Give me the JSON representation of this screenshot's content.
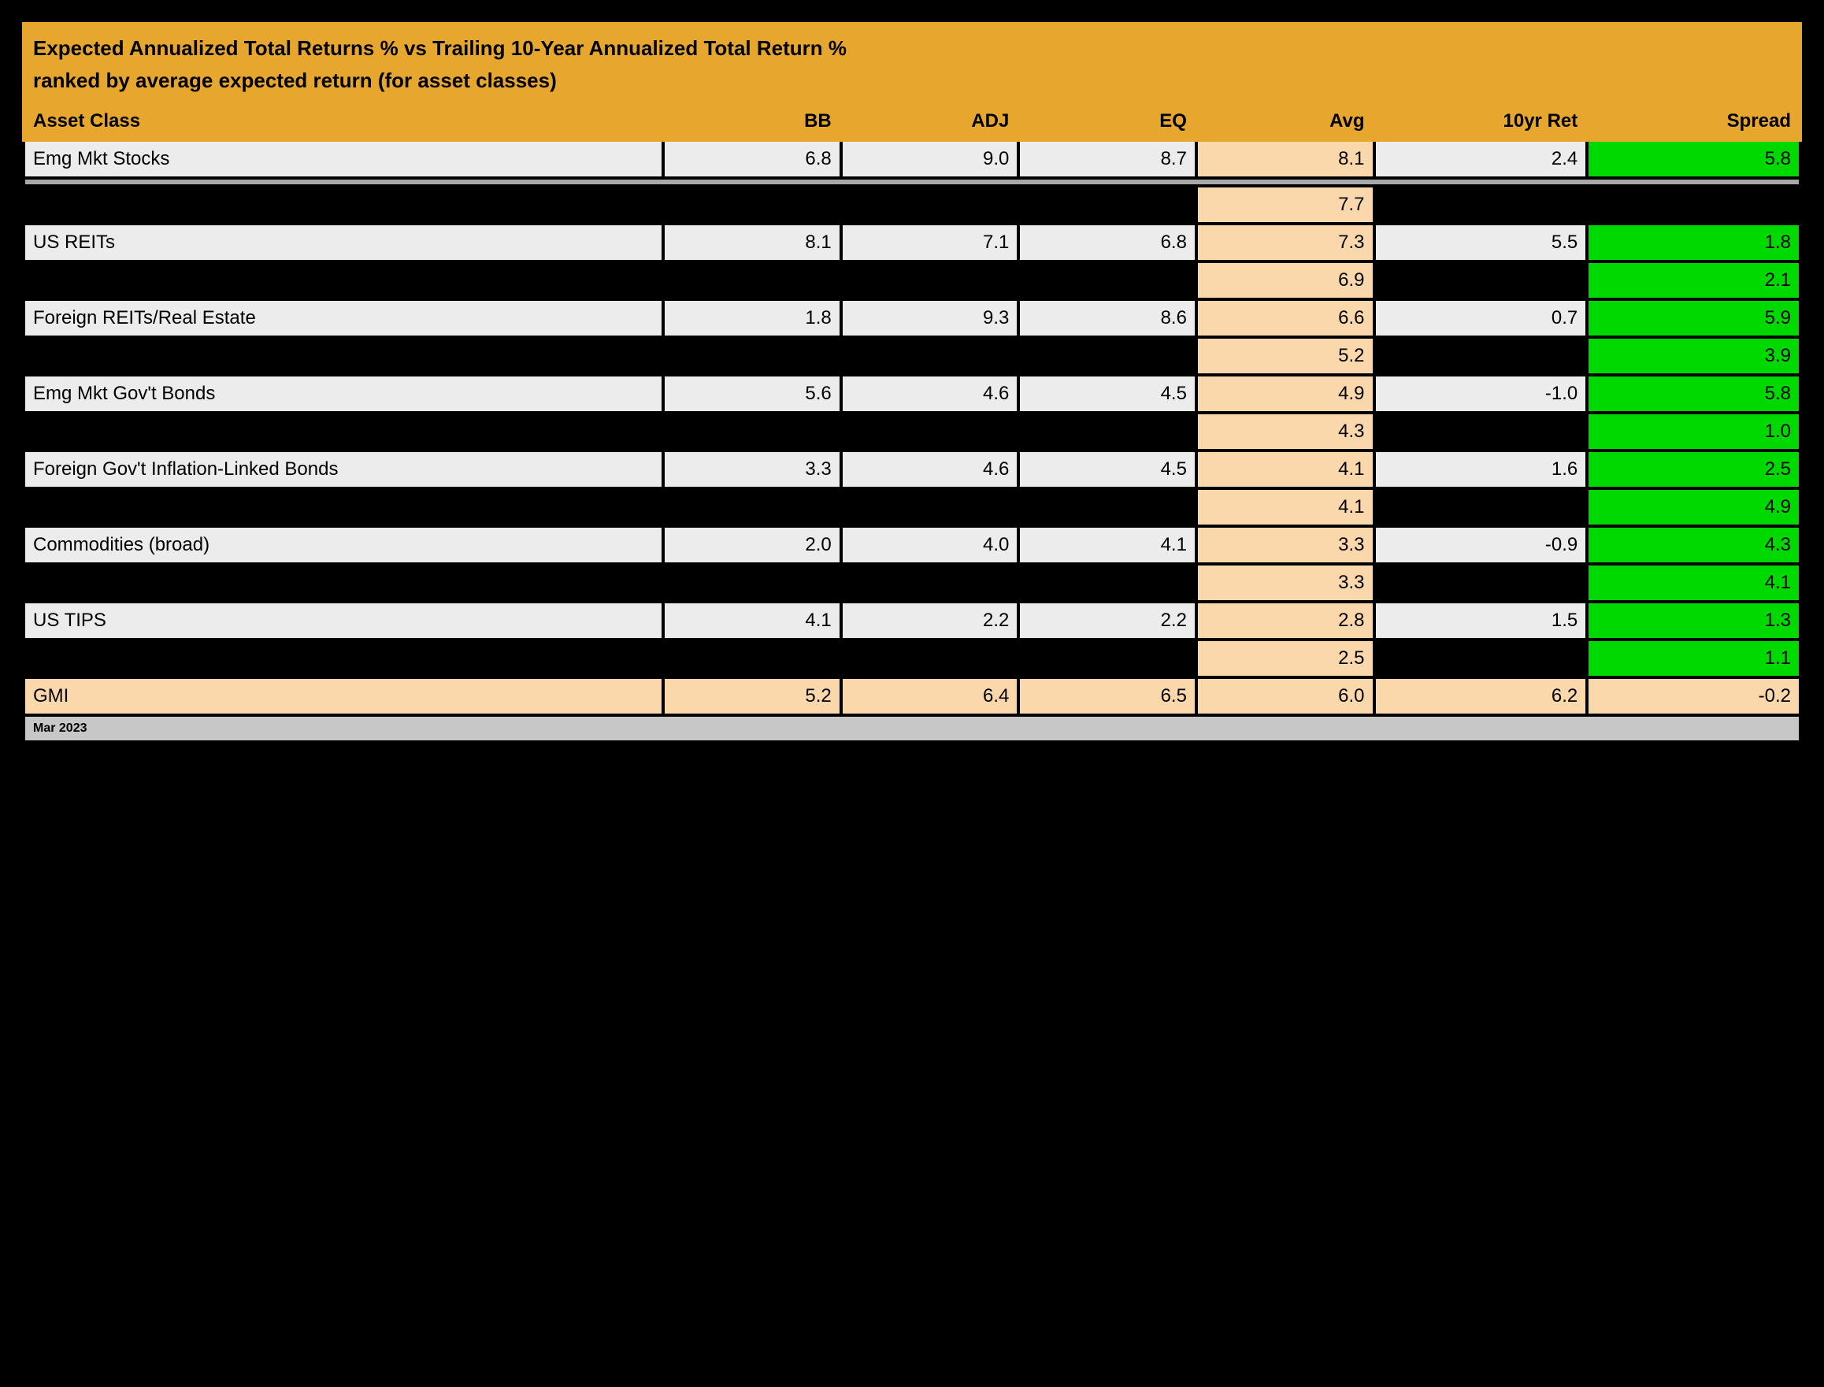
{
  "title": "Expected Annualized Total Returns % vs Trailing 10-Year Annualized Total Return %",
  "subtitle": "ranked by average expected return (for asset classes)",
  "footer": "Mar 2023",
  "columns": [
    "Asset Class",
    "BB",
    "ADJ",
    "EQ",
    "Avg",
    "10yr Ret",
    "Spread"
  ],
  "col_widths_pct": [
    36,
    10,
    10,
    10,
    10,
    12,
    12
  ],
  "colors": {
    "header_bg": "#e7a72f",
    "row_light_bg": "#ececec",
    "row_black_bg": "#000000",
    "avg_bg": "#fbd8ab",
    "spread_pos_bg": "#00d900",
    "separator_bg": "#a9a9a9",
    "footer_bg": "#c7c7c7",
    "border": "#000000",
    "text": "#000000"
  },
  "typography": {
    "title_fontsize_pt": 20,
    "body_fontsize_pt": 18,
    "footer_fontsize_pt": 12,
    "font_family": "Arial",
    "header_weight": "bold"
  },
  "rows": [
    {
      "style": "light",
      "label": "Emg Mkt Stocks",
      "bb": "6.8",
      "adj": "9.0",
      "eq": "8.7",
      "avg": "8.1",
      "ret10": "2.4",
      "spread": "5.8",
      "spread_color": "pos"
    },
    {
      "style": "sep"
    },
    {
      "style": "black",
      "label": "",
      "bb": "",
      "adj": "",
      "eq": "",
      "avg": "7.7",
      "ret10": "",
      "spread": "",
      "spread_color": "black"
    },
    {
      "style": "light",
      "label": "US REITs",
      "bb": "8.1",
      "adj": "7.1",
      "eq": "6.8",
      "avg": "7.3",
      "ret10": "5.5",
      "spread": "1.8",
      "spread_color": "pos"
    },
    {
      "style": "black",
      "label": "",
      "bb": "",
      "adj": "",
      "eq": "",
      "avg": "6.9",
      "ret10": "",
      "spread": "2.1",
      "spread_color": "pos"
    },
    {
      "style": "light",
      "label": "Foreign REITs/Real Estate",
      "bb": "1.8",
      "adj": "9.3",
      "eq": "8.6",
      "avg": "6.6",
      "ret10": "0.7",
      "spread": "5.9",
      "spread_color": "pos"
    },
    {
      "style": "black",
      "label": "",
      "bb": "",
      "adj": "",
      "eq": "",
      "avg": "5.2",
      "ret10": "",
      "spread": "3.9",
      "spread_color": "pos"
    },
    {
      "style": "light",
      "label": "Emg Mkt Gov't Bonds",
      "bb": "5.6",
      "adj": "4.6",
      "eq": "4.5",
      "avg": "4.9",
      "ret10": "-1.0",
      "spread": "5.8",
      "spread_color": "pos"
    },
    {
      "style": "black",
      "label": "",
      "bb": "",
      "adj": "",
      "eq": "",
      "avg": "4.3",
      "ret10": "",
      "spread": "1.0",
      "spread_color": "pos"
    },
    {
      "style": "light",
      "label": "Foreign Gov't Inflation-Linked Bonds",
      "bb": "3.3",
      "adj": "4.6",
      "eq": "4.5",
      "avg": "4.1",
      "ret10": "1.6",
      "spread": "2.5",
      "spread_color": "pos"
    },
    {
      "style": "black",
      "label": "",
      "bb": "",
      "adj": "",
      "eq": "",
      "avg": "4.1",
      "ret10": "",
      "spread": "4.9",
      "spread_color": "pos"
    },
    {
      "style": "light",
      "label": "Commodities (broad)",
      "bb": "2.0",
      "adj": "4.0",
      "eq": "4.1",
      "avg": "3.3",
      "ret10": "-0.9",
      "spread": "4.3",
      "spread_color": "pos"
    },
    {
      "style": "black",
      "label": "",
      "bb": "",
      "adj": "",
      "eq": "",
      "avg": "3.3",
      "ret10": "",
      "spread": "4.1",
      "spread_color": "pos"
    },
    {
      "style": "light",
      "label": "US TIPS",
      "bb": "4.1",
      "adj": "2.2",
      "eq": "2.2",
      "avg": "2.8",
      "ret10": "1.5",
      "spread": "1.3",
      "spread_color": "pos"
    },
    {
      "style": "black",
      "label": "",
      "bb": "",
      "adj": "",
      "eq": "",
      "avg": "2.5",
      "ret10": "",
      "spread": "1.1",
      "spread_color": "pos"
    },
    {
      "style": "summary",
      "label": "GMI",
      "bb": "5.2",
      "adj": "6.4",
      "eq": "6.5",
      "avg": "6.0",
      "ret10": "6.2",
      "spread": "-0.2",
      "spread_color": "summary"
    }
  ]
}
